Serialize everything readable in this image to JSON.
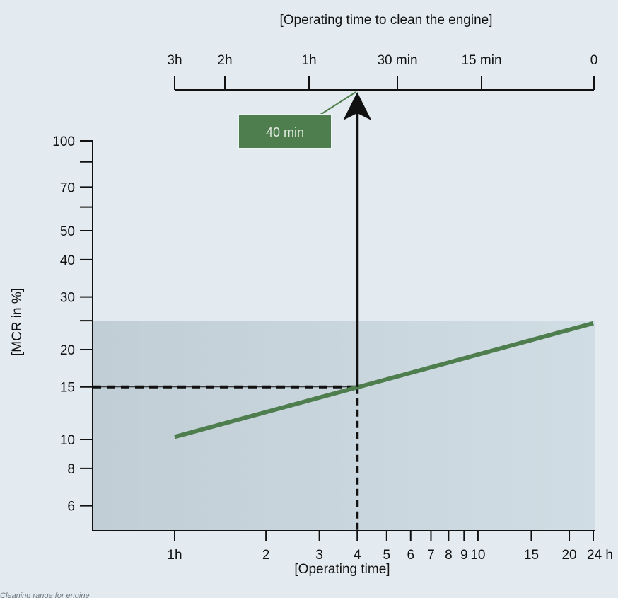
{
  "chart_data": {
    "type": "line",
    "title": "[Operating time to clean the engine]",
    "xlabel": "[Operating time]",
    "ylabel": "[MCR in %]",
    "x_scale": "log",
    "y_scale": "log",
    "x_ticks": [
      {
        "value": 1,
        "label": "1h"
      },
      {
        "value": 2,
        "label": "2"
      },
      {
        "value": 3,
        "label": "3"
      },
      {
        "value": 4,
        "label": "4"
      },
      {
        "value": 5,
        "label": "5"
      },
      {
        "value": 6,
        "label": "6"
      },
      {
        "value": 7,
        "label": "7"
      },
      {
        "value": 8,
        "label": "8"
      },
      {
        "value": 9,
        "label": "9"
      },
      {
        "value": 10,
        "label": "10"
      },
      {
        "value": 15,
        "label": "15"
      },
      {
        "value": 20,
        "label": "20"
      },
      {
        "value": 24,
        "label": "24 h"
      }
    ],
    "y_ticks": [
      {
        "value": 6,
        "label": "6"
      },
      {
        "value": 8,
        "label": "8"
      },
      {
        "value": 10,
        "label": "10"
      },
      {
        "value": 15,
        "label": "15"
      },
      {
        "value": 20,
        "label": "20"
      },
      {
        "value": 25,
        "label": ""
      },
      {
        "value": 30,
        "label": "30"
      },
      {
        "value": 40,
        "label": "40"
      },
      {
        "value": 50,
        "label": "50"
      },
      {
        "value": 60,
        "label": ""
      },
      {
        "value": 70,
        "label": "70"
      },
      {
        "value": 85,
        "label": ""
      },
      {
        "value": 100,
        "label": "100"
      }
    ],
    "top_axis_ticks": [
      {
        "label": "3h"
      },
      {
        "label": "2h"
      },
      {
        "label": "1h"
      },
      {
        "label": "30 min"
      },
      {
        "label": "15 min"
      },
      {
        "label": "0"
      }
    ],
    "series": [
      {
        "color": "#4e7e4e",
        "x": [
          1,
          24
        ],
        "y": [
          10.2,
          24.5
        ]
      }
    ],
    "example": {
      "operating_time_h": 4,
      "mcr_percent": 15,
      "result_label": "40 min"
    },
    "shaded_region_max_mcr": 25,
    "grid": false,
    "legend": "none"
  },
  "footnote": "Cleaning range for engine"
}
